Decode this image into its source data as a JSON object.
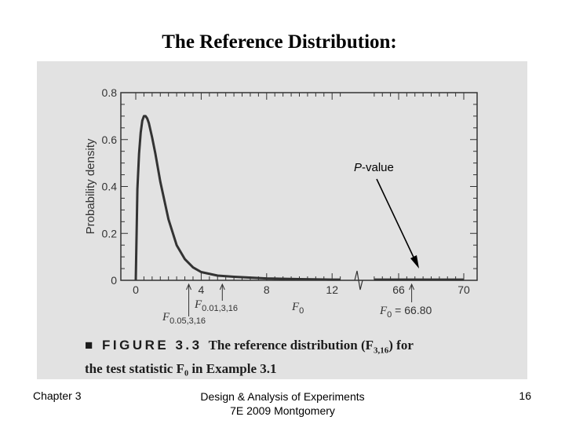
{
  "slide": {
    "title": "The Reference Distribution:"
  },
  "figure": {
    "caption_lead": "■ FIGURE 3.3",
    "caption_text_1": "The reference distribution (F",
    "caption_sub": "3,16",
    "caption_text_2": ") for",
    "caption_line2": "the test statistic F₀ in Example 3.1"
  },
  "footer": {
    "left": "Chapter 3",
    "center_line1": "Design & Analysis of Experiments",
    "center_line2": "7E 2009 Montgomery",
    "page_number": "16"
  },
  "chart_data": {
    "type": "line",
    "distribution": "F(3,16)",
    "ylabel": "Probability density",
    "xlabel": "F₀",
    "ylim": [
      0,
      0.8
    ],
    "y_ticks": [
      "0",
      "0.2",
      "0.4",
      "0.6",
      "0.8"
    ],
    "x_ticks": [
      "0",
      "4",
      "8",
      "12",
      "66",
      "70"
    ],
    "x_break": "between 12 and 66",
    "series": [
      {
        "x": [
          0,
          0.1,
          0.2,
          0.3,
          0.4,
          0.5,
          0.6,
          0.7,
          0.8,
          1.0,
          1.2,
          1.5,
          2.0,
          2.5,
          3.0,
          3.5,
          4.0,
          5.0,
          6.0,
          8.0,
          10.0,
          12.0,
          12.5
        ],
        "y": [
          0,
          0.39,
          0.54,
          0.63,
          0.68,
          0.7,
          0.7,
          0.69,
          0.67,
          0.61,
          0.54,
          0.42,
          0.26,
          0.15,
          0.09,
          0.055,
          0.035,
          0.02,
          0.015,
          0.008,
          0.005,
          0.003,
          0.003
        ]
      }
    ],
    "annotations": {
      "p_value_label_italic": "P",
      "p_value_label_rest": "-value",
      "f05_label": "F",
      "f05_sub": "0.05,3,16",
      "f01_label": "F",
      "f01_sub": "0.01,3,16",
      "f0_axis_label": "F",
      "f0_axis_sub": "0",
      "f0_observed_label": "F",
      "f0_observed_sub": "0",
      "f0_observed_value": " = 66.80"
    },
    "critical_values": {
      "f05": 3.24,
      "f01": 5.29,
      "f0_observed": 66.8
    },
    "grid": false
  }
}
